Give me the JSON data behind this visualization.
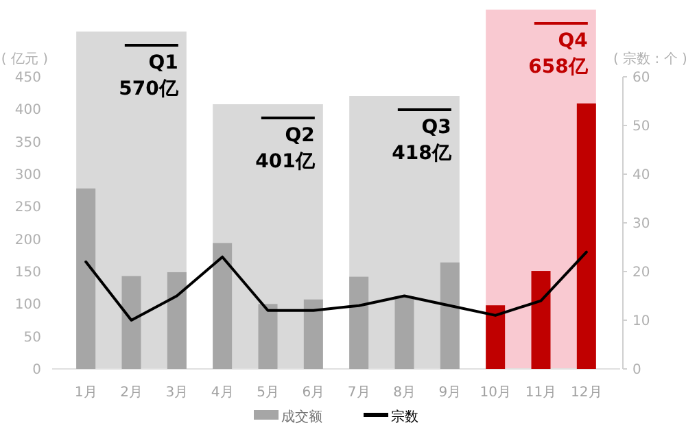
{
  "chart_data": {
    "type": "bar",
    "categories": [
      "1月",
      "2月",
      "3月",
      "4月",
      "5月",
      "6月",
      "7月",
      "8月",
      "9月",
      "10月",
      "11月",
      "12月"
    ],
    "series": [
      {
        "name": "成交额",
        "color": "#a6a6a6",
        "colors": [
          "#a6a6a6",
          "#a6a6a6",
          "#a6a6a6",
          "#a6a6a6",
          "#a6a6a6",
          "#a6a6a6",
          "#a6a6a6",
          "#a6a6a6",
          "#a6a6a6",
          "#c00000",
          "#c00000",
          "#c00000"
        ],
        "values": [
          278,
          143,
          149,
          194,
          100,
          107,
          142,
          112,
          164,
          98,
          151,
          409
        ]
      },
      {
        "name": "宗数",
        "type": "line",
        "axis": "y2",
        "color": "#000000",
        "values": [
          22,
          10,
          15,
          23,
          12,
          12,
          13,
          15,
          13,
          11,
          14,
          24
        ]
      }
    ],
    "ylabel": "( 亿元 )",
    "y2label": "( 宗数 : 个 )",
    "ylim": [
      0,
      450
    ],
    "yticks": [
      0,
      50,
      100,
      150,
      200,
      250,
      300,
      350,
      400,
      450
    ],
    "y2lim": [
      0,
      60
    ],
    "y2ticks": [
      0,
      10,
      20,
      30,
      40,
      50,
      60
    ],
    "bands": [
      {
        "axis": "x",
        "from": "1月",
        "to": "3月",
        "label": "Q1\n570亿",
        "color": "#d9d9d9"
      },
      {
        "axis": "x",
        "from": "4月",
        "to": "6月",
        "label": "Q2\n401亿",
        "color": "#d9d9d9"
      },
      {
        "axis": "x",
        "from": "7月",
        "to": "9月",
        "label": "Q3\n418亿",
        "color": "#d9d9d9"
      },
      {
        "axis": "x",
        "from": "10月",
        "to": "12月",
        "label": "Q4\n658亿",
        "color": "#f9c9d1"
      }
    ],
    "legend": "bottom",
    "marker": "none",
    "line_style": "solid"
  }
}
